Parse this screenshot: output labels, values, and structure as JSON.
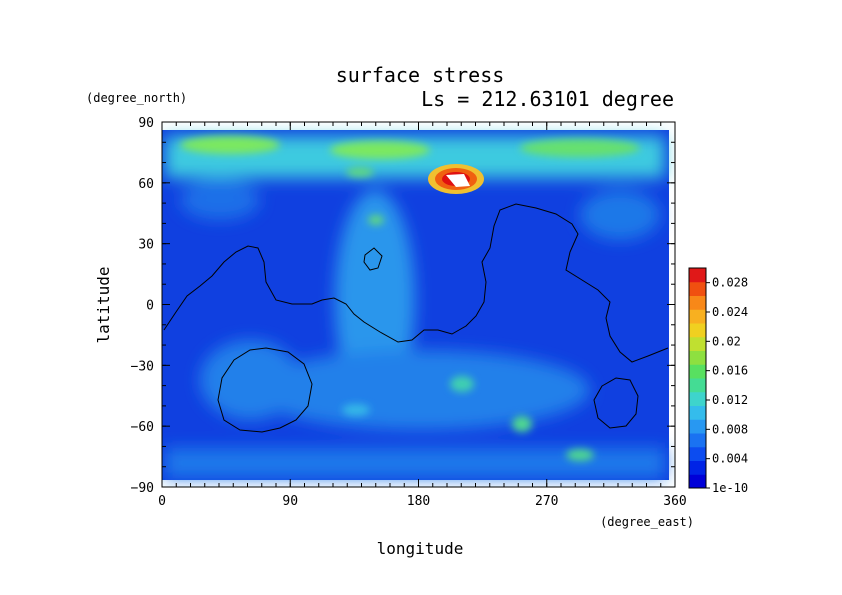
{
  "chart_data": {
    "type": "heatmap",
    "title": "surface stress",
    "subtitle": "Ls = 212.63101 degree",
    "xlabel": "longitude",
    "ylabel": "latitude",
    "xunit": "(degree_east)",
    "yunit": "(degree_north)",
    "xlim": [
      0,
      360
    ],
    "ylim": [
      -90,
      90
    ],
    "xticks": [
      "0",
      "90",
      "180",
      "270",
      "360"
    ],
    "yticks": [
      "90",
      "60",
      "30",
      "0",
      "−30",
      "−60",
      "−90"
    ],
    "colorbar": {
      "ticks": [
        "1e-10",
        "0.004",
        "0.008",
        "0.012",
        "0.016",
        "0.02",
        "0.024",
        "0.028"
      ],
      "range": [
        0,
        0.03
      ]
    },
    "features": [
      {
        "name": "north polar band",
        "lon": [
          0,
          360
        ],
        "lat": [
          66,
          86
        ],
        "value": 0.015
      },
      {
        "name": "peak",
        "lon": 208,
        "lat": 63,
        "value": 0.03
      },
      {
        "name": "high 250E",
        "lon": 250,
        "lat": -60,
        "value": 0.014
      },
      {
        "name": "high 290E",
        "lon": 292,
        "lat": -73,
        "value": 0.014
      }
    ]
  }
}
